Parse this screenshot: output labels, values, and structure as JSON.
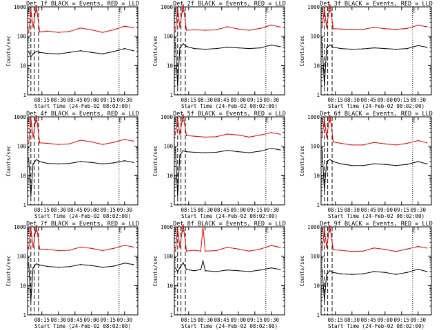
{
  "chart_data": [
    {
      "type": "line",
      "title": "Det 1f BLACK = Events, RED = LLD",
      "xlabel": "Start Time (24-Feb-02 08:02:00)",
      "ylabel": "Counts/sec",
      "x_ticks": [
        "08:15",
        "08:30",
        "08:45",
        "09:00",
        "09:15",
        "09:30"
      ],
      "y_ticks": [
        "1",
        "10",
        "100",
        "1000"
      ],
      "ylim": [
        1,
        1000
      ],
      "y_scale": "log",
      "markers": [
        {
          "label": "E",
          "time": "08:04"
        },
        {
          "label": "S",
          "time": "08:09"
        },
        {
          "label": "E",
          "time": "09:26"
        }
      ],
      "dashed_lines": [
        "08:05",
        "08:08",
        "08:12"
      ],
      "dotted_lines": [
        "09:25"
      ],
      "series": [
        {
          "name": "BLACK = Events",
          "color": "#000000",
          "x": [
            "08:03",
            "08:05",
            "08:07",
            "08:10",
            "08:13",
            "08:20",
            "08:30",
            "08:40",
            "08:50",
            "09:00",
            "09:10",
            "09:20",
            "09:30",
            "09:38"
          ],
          "values": [
            30,
            20,
            25,
            30,
            28,
            26,
            25,
            28,
            32,
            28,
            25,
            30,
            38,
            32
          ]
        },
        {
          "name": "RED = LLD",
          "color": "#e00000",
          "x": [
            "08:03",
            "08:05",
            "08:07",
            "08:10",
            "08:13",
            "08:20",
            "08:30",
            "08:40",
            "08:50",
            "09:00",
            "09:10",
            "09:20",
            "09:30",
            "09:38"
          ],
          "values": [
            130,
            800,
            200,
            1100,
            140,
            150,
            135,
            145,
            190,
            165,
            135,
            165,
            220,
            195
          ]
        }
      ]
    },
    {
      "type": "line",
      "title": "Det 2f BLACK = Events, RED = LLD",
      "xlabel": "Start Time (24-Feb-02 08:02:00)",
      "ylabel": "Counts/sec",
      "x_ticks": [
        "08:15",
        "08:30",
        "08:45",
        "09:00",
        "09:15",
        "09:30"
      ],
      "y_ticks": [
        "1",
        "10",
        "100",
        "1000"
      ],
      "ylim": [
        1,
        1000
      ],
      "y_scale": "log",
      "markers": [
        {
          "label": "E",
          "time": "08:04"
        },
        {
          "label": "S",
          "time": "08:09"
        },
        {
          "label": "E",
          "time": "09:26"
        }
      ],
      "dashed_lines": [
        "08:05",
        "08:08",
        "08:12"
      ],
      "dotted_lines": [
        "09:25"
      ],
      "series": [
        {
          "name": "BLACK = Events",
          "color": "#000000",
          "x": [
            "08:03",
            "08:05",
            "08:07",
            "08:10",
            "08:13",
            "08:20",
            "08:30",
            "08:40",
            "08:50",
            "09:00",
            "09:10",
            "09:20",
            "09:30",
            "09:38"
          ],
          "values": [
            60,
            2,
            40,
            55,
            45,
            38,
            36,
            38,
            42,
            40,
            38,
            40,
            50,
            44
          ]
        },
        {
          "name": "RED = LLD",
          "color": "#e00000",
          "x": [
            "08:03",
            "08:05",
            "08:07",
            "08:10",
            "08:13",
            "08:20",
            "08:30",
            "08:40",
            "08:50",
            "09:00",
            "09:10",
            "09:20",
            "09:30",
            "09:38"
          ],
          "values": [
            140,
            900,
            200,
            1200,
            160,
            165,
            160,
            165,
            210,
            175,
            160,
            185,
            240,
            205
          ]
        }
      ]
    },
    {
      "type": "line",
      "title": "Det 3f BLACK = Events, RED = LLD",
      "xlabel": "Start Time (24-Feb-02 08:02:00)",
      "ylabel": "Counts/sec",
      "x_ticks": [
        "08:15",
        "08:30",
        "08:45",
        "09:00",
        "09:15",
        "09:30"
      ],
      "y_ticks": [
        "1",
        "10",
        "100",
        "1000"
      ],
      "ylim": [
        1,
        1000
      ],
      "y_scale": "log",
      "markers": [
        {
          "label": "E",
          "time": "08:04"
        },
        {
          "label": "S",
          "time": "08:09"
        },
        {
          "label": "E",
          "time": "09:26"
        }
      ],
      "dashed_lines": [
        "08:05",
        "08:08",
        "08:12"
      ],
      "dotted_lines": [
        "09:25"
      ],
      "series": [
        {
          "name": "BLACK = Events",
          "color": "#000000",
          "x": [
            "08:03",
            "08:05",
            "08:07",
            "08:10",
            "08:13",
            "08:20",
            "08:30",
            "08:40",
            "08:50",
            "09:00",
            "09:10",
            "09:20",
            "09:30",
            "09:38"
          ],
          "values": [
            55,
            2,
            40,
            50,
            42,
            38,
            36,
            37,
            40,
            38,
            36,
            38,
            48,
            42
          ]
        },
        {
          "name": "RED = LLD",
          "color": "#e00000",
          "x": [
            "08:03",
            "08:05",
            "08:07",
            "08:10",
            "08:13",
            "08:20",
            "08:30",
            "08:40",
            "08:50",
            "09:00",
            "09:10",
            "09:20",
            "09:30",
            "09:38"
          ],
          "values": [
            200,
            900,
            200,
            1200,
            180,
            175,
            170,
            170,
            200,
            180,
            170,
            185,
            235,
            210
          ]
        }
      ]
    },
    {
      "type": "line",
      "title": "Det 4f BLACK = Events, RED = LLD",
      "xlabel": "Start Time (24-Feb-02 08:02:00)",
      "ylabel": "Counts/sec",
      "x_ticks": [
        "08:15",
        "08:30",
        "08:45",
        "09:00",
        "09:15",
        "09:30"
      ],
      "y_ticks": [
        "1",
        "10",
        "100",
        "1000"
      ],
      "ylim": [
        1,
        1000
      ],
      "y_scale": "log",
      "markers": [
        {
          "label": "E",
          "time": "08:04"
        },
        {
          "label": "S",
          "time": "08:09"
        },
        {
          "label": "E",
          "time": "09:26"
        }
      ],
      "dashed_lines": [
        "08:05",
        "08:08",
        "08:12"
      ],
      "dotted_lines": [
        "09:25"
      ],
      "series": [
        {
          "name": "BLACK = Events",
          "color": "#000000",
          "x": [
            "08:03",
            "08:05",
            "08:07",
            "08:10",
            "08:13",
            "08:20",
            "08:30",
            "08:40",
            "08:50",
            "09:00",
            "09:10",
            "09:20",
            "09:30",
            "09:38"
          ],
          "values": [
            40,
            2,
            25,
            35,
            30,
            26,
            25,
            26,
            30,
            28,
            25,
            27,
            32,
            28
          ]
        },
        {
          "name": "RED = LLD",
          "color": "#e00000",
          "x": [
            "08:03",
            "08:05",
            "08:07",
            "08:10",
            "08:13",
            "08:20",
            "08:30",
            "08:40",
            "08:50",
            "09:00",
            "09:10",
            "09:20",
            "09:30",
            "09:38"
          ],
          "values": [
            120,
            900,
            200,
            1100,
            130,
            125,
            115,
            120,
            160,
            140,
            115,
            135,
            170,
            150
          ]
        }
      ]
    },
    {
      "type": "line",
      "title": "Det 5f BLACK = Events, RED = LLD",
      "xlabel": "Start Time (24-Feb-02 08:02:00)",
      "ylabel": "Counts/sec",
      "x_ticks": [
        "08:15",
        "08:30",
        "08:45",
        "09:00",
        "09:15",
        "09:30"
      ],
      "y_ticks": [
        "1",
        "10",
        "100",
        "1000"
      ],
      "ylim": [
        1,
        1000
      ],
      "y_scale": "log",
      "markers": [
        {
          "label": "E",
          "time": "08:04"
        },
        {
          "label": "S",
          "time": "08:09"
        },
        {
          "label": "E",
          "time": "09:26"
        }
      ],
      "dashed_lines": [
        "08:05",
        "08:08",
        "08:12"
      ],
      "dotted_lines": [
        "09:25"
      ],
      "series": [
        {
          "name": "BLACK = Events",
          "color": "#000000",
          "x": [
            "08:03",
            "08:05",
            "08:07",
            "08:10",
            "08:13",
            "08:20",
            "08:30",
            "08:40",
            "08:50",
            "09:00",
            "09:10",
            "09:20",
            "09:30",
            "09:38"
          ],
          "values": [
            80,
            2,
            50,
            70,
            65,
            62,
            60,
            62,
            72,
            65,
            60,
            68,
            85,
            75
          ]
        },
        {
          "name": "RED = LLD",
          "color": "#e00000",
          "x": [
            "08:03",
            "08:05",
            "08:07",
            "08:10",
            "08:13",
            "08:20",
            "08:30",
            "08:40",
            "08:50",
            "09:00",
            "09:10",
            "09:20",
            "09:30",
            "09:38"
          ],
          "values": [
            250,
            900,
            250,
            1200,
            230,
            220,
            205,
            210,
            260,
            240,
            205,
            240,
            290,
            255
          ]
        }
      ]
    },
    {
      "type": "line",
      "title": "Det 6f BLACK = Events, RED = LLD",
      "xlabel": "Start Time (24-Feb-02 08:02:00)",
      "ylabel": "Counts/sec",
      "x_ticks": [
        "08:15",
        "08:30",
        "08:45",
        "09:00",
        "09:15",
        "09:30"
      ],
      "y_ticks": [
        "1",
        "10",
        "100",
        "1000"
      ],
      "ylim": [
        1,
        1000
      ],
      "y_scale": "log",
      "markers": [
        {
          "label": "E",
          "time": "08:04"
        },
        {
          "label": "S",
          "time": "08:09"
        },
        {
          "label": "E",
          "time": "09:26"
        }
      ],
      "dashed_lines": [
        "08:05",
        "08:08",
        "08:12"
      ],
      "dotted_lines": [
        "09:25"
      ],
      "series": [
        {
          "name": "BLACK = Events",
          "color": "#000000",
          "x": [
            "08:03",
            "08:05",
            "08:07",
            "08:10",
            "08:13",
            "08:20",
            "08:30",
            "08:40",
            "08:50",
            "09:00",
            "09:10",
            "09:20",
            "09:30",
            "09:38"
          ],
          "values": [
            70,
            3,
            30,
            35,
            30,
            25,
            22,
            22,
            25,
            24,
            22,
            24,
            30,
            25
          ]
        },
        {
          "name": "RED = LLD",
          "color": "#e00000",
          "x": [
            "08:03",
            "08:05",
            "08:07",
            "08:10",
            "08:13",
            "08:20",
            "08:30",
            "08:40",
            "08:50",
            "09:00",
            "09:10",
            "09:20",
            "09:30",
            "09:38"
          ],
          "values": [
            200,
            900,
            200,
            1100,
            140,
            125,
            110,
            110,
            135,
            120,
            110,
            125,
            155,
            130
          ]
        }
      ]
    },
    {
      "type": "line",
      "title": "Det 7f BLACK = Events, RED = LLD",
      "xlabel": "Start Time (24-Feb-02 08:02:00)",
      "ylabel": "Counts/sec",
      "x_ticks": [
        "08:15",
        "08:30",
        "08:45",
        "09:00",
        "09:15",
        "09:30"
      ],
      "y_ticks": [
        "1",
        "10",
        "100",
        "1000"
      ],
      "ylim": [
        1,
        1000
      ],
      "y_scale": "log",
      "markers": [
        {
          "label": "E",
          "time": "08:04"
        },
        {
          "label": "S",
          "time": "08:09"
        },
        {
          "label": "E",
          "time": "09:26"
        }
      ],
      "dashed_lines": [
        "08:05",
        "08:08",
        "08:12"
      ],
      "dotted_lines": [
        "09:25"
      ],
      "series": [
        {
          "name": "BLACK = Events",
          "color": "#000000",
          "x": [
            "08:03",
            "08:05",
            "08:07",
            "08:10",
            "08:13",
            "08:20",
            "08:30",
            "08:40",
            "08:50",
            "09:00",
            "09:10",
            "09:20",
            "09:30",
            "09:38"
          ],
          "values": [
            60,
            3,
            40,
            55,
            50,
            45,
            42,
            44,
            52,
            48,
            42,
            46,
            58,
            52
          ]
        },
        {
          "name": "RED = LLD",
          "color": "#e00000",
          "x": [
            "08:03",
            "08:05",
            "08:07",
            "08:10",
            "08:13",
            "08:20",
            "08:30",
            "08:40",
            "08:50",
            "09:00",
            "09:10",
            "09:20",
            "09:30",
            "09:38"
          ],
          "values": [
            180,
            900,
            200,
            1100,
            175,
            170,
            155,
            160,
            205,
            185,
            155,
            185,
            235,
            205
          ]
        }
      ]
    },
    {
      "type": "line",
      "title": "Det 8f BLACK = Events, RED = LLD",
      "xlabel": "Start Time (24-Feb-02 08:02:00)",
      "ylabel": "Counts/sec",
      "x_ticks": [
        "08:15",
        "08:30",
        "08:45",
        "09:00",
        "09:15",
        "09:30"
      ],
      "y_ticks": [
        "1",
        "10",
        "100",
        "1000"
      ],
      "ylim": [
        1,
        1000
      ],
      "y_scale": "log",
      "markers": [
        {
          "label": "E",
          "time": "08:04"
        },
        {
          "label": "S",
          "time": "08:09"
        },
        {
          "label": "E",
          "time": "09:26"
        }
      ],
      "dashed_lines": [
        "08:05",
        "08:08",
        "08:12"
      ],
      "dotted_lines": [
        "09:25"
      ],
      "series": [
        {
          "name": "BLACK = Events",
          "color": "#000000",
          "x": [
            "08:03",
            "08:05",
            "08:07",
            "08:10",
            "08:13",
            "08:20",
            "08:26",
            "08:28",
            "08:30",
            "08:40",
            "08:50",
            "09:00",
            "09:10",
            "09:20",
            "09:30",
            "09:38"
          ],
          "values": [
            40,
            30,
            40,
            60,
            35,
            32,
            35,
            70,
            32,
            30,
            34,
            32,
            30,
            34,
            40,
            35
          ]
        },
        {
          "name": "RED = LLD",
          "color": "#e00000",
          "x": [
            "08:03",
            "08:05",
            "08:07",
            "08:10",
            "08:13",
            "08:20",
            "08:26",
            "08:28",
            "08:30",
            "08:40",
            "08:50",
            "09:00",
            "09:10",
            "09:20",
            "09:30",
            "09:38"
          ],
          "values": [
            150,
            900,
            200,
            1200,
            150,
            160,
            150,
            1000,
            150,
            155,
            200,
            175,
            150,
            175,
            230,
            200
          ]
        }
      ]
    },
    {
      "type": "line",
      "title": "Det 9f BLACK = Events, RED = LLD",
      "xlabel": "Start Time (24-Feb-02 08:02:00)",
      "ylabel": "Counts/sec",
      "x_ticks": [
        "08:15",
        "08:30",
        "08:45",
        "09:00",
        "09:15",
        "09:30"
      ],
      "y_ticks": [
        "1",
        "10",
        "100",
        "1000"
      ],
      "ylim": [
        1,
        1000
      ],
      "y_scale": "log",
      "markers": [
        {
          "label": "E",
          "time": "08:04"
        },
        {
          "label": "S",
          "time": "08:09"
        },
        {
          "label": "E",
          "time": "09:26"
        }
      ],
      "dashed_lines": [
        "08:05",
        "08:08",
        "08:12"
      ],
      "dotted_lines": [
        "09:25"
      ],
      "series": [
        {
          "name": "BLACK = Events",
          "color": "#000000",
          "x": [
            "08:03",
            "08:05",
            "08:07",
            "08:10",
            "08:13",
            "08:20",
            "08:30",
            "08:40",
            "08:50",
            "09:00",
            "09:10",
            "09:20",
            "09:30",
            "09:38"
          ],
          "values": [
            35,
            3,
            25,
            32,
            28,
            25,
            24,
            25,
            30,
            28,
            24,
            28,
            36,
            30
          ]
        },
        {
          "name": "RED = LLD",
          "color": "#e00000",
          "x": [
            "08:03",
            "08:05",
            "08:07",
            "08:10",
            "08:13",
            "08:20",
            "08:30",
            "08:40",
            "08:50",
            "09:00",
            "09:10",
            "09:20",
            "09:30",
            "09:38"
          ],
          "values": [
            160,
            900,
            200,
            1100,
            165,
            160,
            145,
            150,
            190,
            170,
            145,
            175,
            215,
            190
          ]
        }
      ]
    }
  ]
}
